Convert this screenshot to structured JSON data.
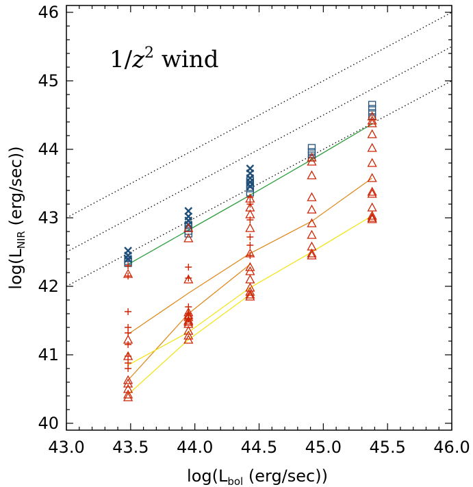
{
  "chart_data": {
    "type": "scatter",
    "annotation": {
      "prefix": "1/",
      "var": "z",
      "exp": "2",
      "suffix": " wind"
    },
    "xlabel": {
      "prefix": "log(L",
      "sub": "bol",
      "suffix": " (erg/sec))"
    },
    "ylabel": {
      "prefix": "log(L",
      "sub": "NIR",
      "suffix": " (erg/sec))"
    },
    "xlim": [
      43.0,
      46.0
    ],
    "ylim": [
      39.9,
      46.1
    ],
    "xticks": [
      43.0,
      43.5,
      44.0,
      44.5,
      45.0,
      45.5,
      46.0
    ],
    "xtick_labels": [
      "43.0",
      "43.5",
      "44.0",
      "44.5",
      "45.0",
      "45.5",
      "46.0"
    ],
    "yticks": [
      40,
      41,
      42,
      43,
      44,
      45,
      46
    ],
    "ytick_labels": [
      "40",
      "41",
      "42",
      "43",
      "44",
      "45",
      "46"
    ],
    "grid": false,
    "colors": {
      "blue": "#1f4e79",
      "red": "#cc2200",
      "green": "#2e9e3e",
      "orange": "#e08a1e",
      "yellow": "#f2e41c",
      "dotted": "#000000"
    },
    "reference_lines": [
      {
        "style": "dotted",
        "x": [
          43.0,
          46.0
        ],
        "y": [
          43.0,
          46.0
        ]
      },
      {
        "style": "dotted",
        "x": [
          43.0,
          46.0
        ],
        "y": [
          42.5,
          45.5
        ]
      },
      {
        "style": "dotted",
        "x": [
          43.0,
          46.0
        ],
        "y": [
          42.0,
          45.0
        ]
      }
    ],
    "lines": [
      {
        "color": "green",
        "x": [
          43.48,
          43.95,
          44.43,
          44.91,
          45.38
        ],
        "y": [
          42.32,
          42.82,
          43.33,
          43.85,
          44.37
        ]
      },
      {
        "color": "orange",
        "x": [
          43.48,
          43.95,
          44.43,
          44.91,
          45.38
        ],
        "y": [
          41.3,
          41.9,
          42.48,
          42.95,
          43.58
        ]
      },
      {
        "color": "orange",
        "x": [
          43.48,
          43.95,
          44.43
        ],
        "y": [
          40.63,
          41.6,
          42.32
        ]
      },
      {
        "color": "yellow",
        "x": [
          43.48,
          43.95,
          44.43,
          44.91,
          45.38
        ],
        "y": [
          40.85,
          41.33,
          41.98,
          42.5,
          43.03
        ]
      },
      {
        "color": "yellow",
        "x": [
          43.48,
          43.95,
          44.43
        ],
        "y": [
          40.42,
          41.22,
          41.88
        ]
      }
    ],
    "series": [
      {
        "marker": "cross",
        "color": "blue",
        "x": [
          43.48,
          43.48,
          43.48,
          43.95,
          43.95,
          43.95,
          43.95,
          44.43,
          44.43,
          44.43,
          44.43,
          44.43
        ],
        "y": [
          42.52,
          42.45,
          42.4,
          43.1,
          43.02,
          42.96,
          42.9,
          43.72,
          43.65,
          43.58,
          43.52,
          43.46
        ]
      },
      {
        "marker": "square",
        "color": "blue",
        "x": [
          43.48,
          43.48,
          43.48,
          43.95,
          43.95,
          43.95,
          43.95,
          44.43,
          44.43,
          44.43,
          44.43,
          44.91,
          44.91,
          44.91,
          44.91,
          45.38,
          45.38,
          45.38,
          45.38
        ],
        "y": [
          42.4,
          42.36,
          42.33,
          42.9,
          42.85,
          42.8,
          42.76,
          43.55,
          43.48,
          43.42,
          43.36,
          44.03,
          43.97,
          43.92,
          43.87,
          44.66,
          44.6,
          44.54,
          44.48
        ]
      },
      {
        "marker": "plus",
        "color": "red",
        "x": [
          43.48,
          43.48,
          43.48,
          43.48,
          43.48,
          43.48,
          43.48,
          43.48,
          43.48,
          43.95,
          43.95,
          43.95,
          43.95,
          43.95,
          44.43,
          44.43,
          44.43,
          44.43,
          44.43,
          44.43
        ],
        "y": [
          42.3,
          42.15,
          41.63,
          41.4,
          41.32,
          41.15,
          40.98,
          40.88,
          40.8,
          42.28,
          42.12,
          41.7,
          41.6,
          41.52,
          43.3,
          43.2,
          42.97,
          42.72,
          42.6,
          42.45
        ]
      },
      {
        "marker": "triangle",
        "color": "red",
        "x": [
          43.48,
          43.48,
          43.48,
          43.48,
          43.48,
          43.48,
          43.48,
          43.48,
          43.95,
          43.95,
          43.95,
          43.95,
          43.95,
          43.95,
          43.95,
          43.95,
          43.95,
          43.95,
          43.95,
          43.95,
          44.43,
          44.43,
          44.43,
          44.43,
          44.43,
          44.43,
          44.43,
          44.43,
          44.43,
          44.43,
          44.43,
          44.43,
          44.91,
          44.91,
          44.91,
          44.91,
          44.91,
          44.91,
          44.91,
          44.91,
          44.91,
          44.91,
          45.38,
          45.38,
          45.38,
          45.38,
          45.38,
          45.38,
          45.38,
          45.38,
          45.38,
          45.38,
          45.38,
          45.38,
          45.38
        ],
        "y": [
          42.18,
          41.22,
          40.98,
          40.63,
          40.58,
          40.5,
          40.42,
          40.38,
          42.85,
          42.7,
          42.1,
          41.62,
          41.55,
          41.48,
          41.35,
          41.28,
          41.22,
          41.5,
          41.58,
          41.45,
          43.28,
          43.05,
          42.48,
          42.28,
          42.1,
          41.98,
          41.92,
          41.88,
          41.85,
          42.22,
          43.15,
          42.85,
          43.88,
          43.62,
          43.3,
          43.12,
          42.92,
          42.75,
          42.58,
          42.48,
          42.45,
          43.82,
          44.48,
          44.38,
          44.22,
          44.02,
          43.8,
          43.58,
          43.35,
          43.15,
          43.03,
          43.0,
          44.42,
          43.38,
          42.98
        ]
      }
    ]
  }
}
